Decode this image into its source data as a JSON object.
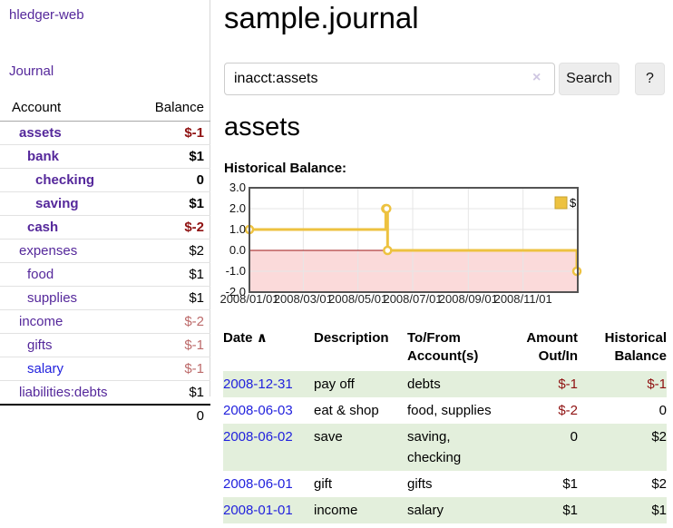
{
  "brand": "hledger-web",
  "nav": {
    "journal": "Journal"
  },
  "sidebar": {
    "header": {
      "account": "Account",
      "balance": "Balance"
    },
    "accounts": [
      {
        "name": "assets",
        "balance": "$-1"
      },
      {
        "name": "bank",
        "balance": "$1"
      },
      {
        "name": "checking",
        "balance": "0"
      },
      {
        "name": "saving",
        "balance": "$1"
      },
      {
        "name": "cash",
        "balance": "$-2"
      },
      {
        "name": "expenses",
        "balance": "$2"
      },
      {
        "name": "food",
        "balance": "$1"
      },
      {
        "name": "supplies",
        "balance": "$1"
      },
      {
        "name": "income",
        "balance": "$-2"
      },
      {
        "name": "gifts",
        "balance": "$-1"
      },
      {
        "name": "salary",
        "balance": "$-1"
      },
      {
        "name": "liabilities:debts",
        "balance": "$1"
      }
    ],
    "total": "0"
  },
  "page": {
    "title": "sample.journal"
  },
  "search": {
    "value": "inacct:assets",
    "clear_icon": "×",
    "search_label": "Search",
    "help_label": "?"
  },
  "account_page": {
    "heading": "assets",
    "chart_title": "Historical Balance:"
  },
  "chart_data": {
    "type": "line",
    "step": true,
    "series": [
      {
        "name": "$",
        "color": "#edc240",
        "points": [
          [
            "2008-01-01",
            1
          ],
          [
            "2008-06-01",
            2
          ],
          [
            "2008-06-02",
            2
          ],
          [
            "2008-06-03",
            0
          ],
          [
            "2008-12-31",
            -1
          ]
        ]
      }
    ],
    "x_range": [
      "2008-01-01",
      "2009-01-01"
    ],
    "x_ticks": [
      "2008/01/01",
      "2008/03/01",
      "2008/05/01",
      "2008/07/01",
      "2008/09/01",
      "2008/11/01"
    ],
    "y_ticks": [
      3.0,
      2.0,
      1.0,
      0.0,
      -1.0,
      -2.0
    ],
    "ylim": [
      -2,
      3
    ],
    "grid": true,
    "legend_position": "top-right",
    "colors": {
      "line": "#edc240",
      "marker_fill": "#ffffff",
      "legend_border": "#c7a22e",
      "negative_region": "#fbdada",
      "zero_line": "#9c1616",
      "gridline": "#e6e6e6",
      "plot_border": "#545454"
    }
  },
  "register": {
    "sort_icon": "∧",
    "columns": [
      "Date",
      "Description",
      "To/From Account(s)",
      "Amount Out/In",
      "Historical Balance"
    ],
    "rows": [
      {
        "date": "2008-12-31",
        "description": "pay off",
        "accounts": "debts",
        "amount": "$-1",
        "balance": "$-1"
      },
      {
        "date": "2008-06-03",
        "description": "eat & shop",
        "accounts": "food, supplies",
        "amount": "$-2",
        "balance": "0"
      },
      {
        "date": "2008-06-02",
        "description": "save",
        "accounts": "saving, checking",
        "amount": "0",
        "balance": "$2"
      },
      {
        "date": "2008-06-01",
        "description": "gift",
        "accounts": "gifts",
        "amount": "$1",
        "balance": "$2"
      },
      {
        "date": "2008-01-01",
        "description": "income",
        "accounts": "salary",
        "amount": "$1",
        "balance": "$1"
      }
    ]
  }
}
